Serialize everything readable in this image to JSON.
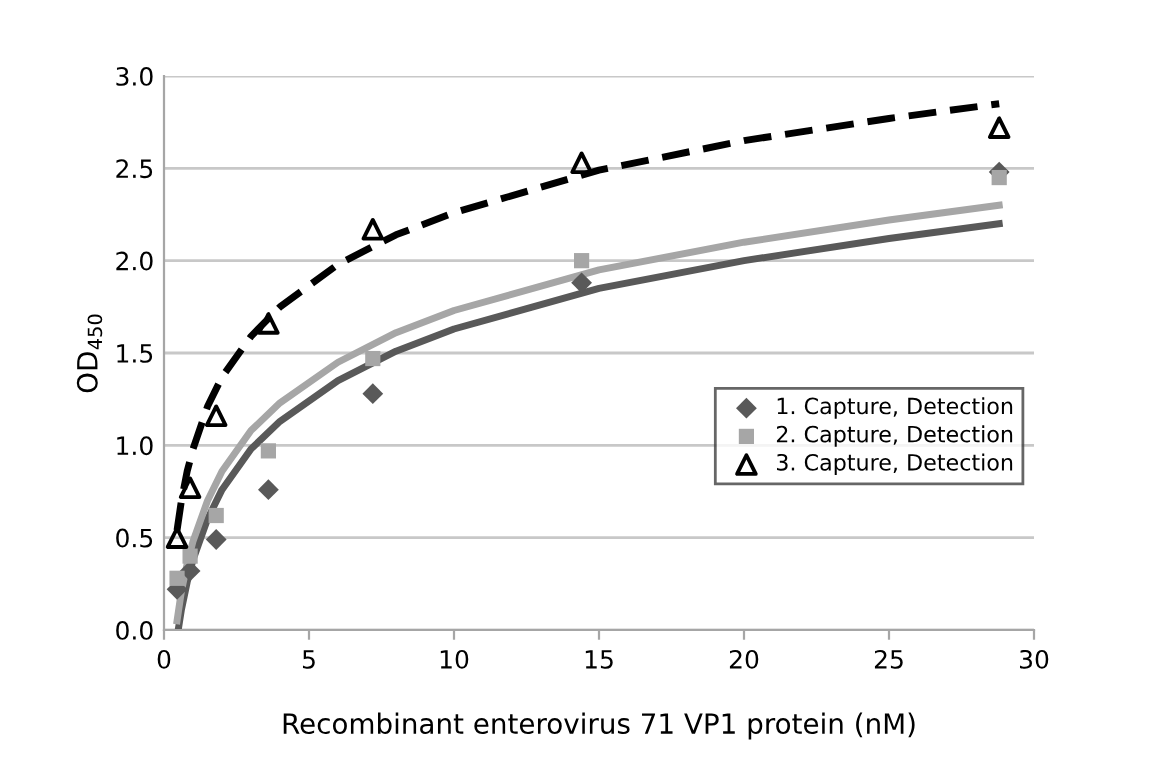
{
  "chart_data": {
    "type": "scatter",
    "xlabel": "Recombinant enterovirus 71 VP1 protein (nM)",
    "ylabel": "OD$_{450}$",
    "xlim": [
      0,
      30
    ],
    "xticks": [
      0,
      5,
      10,
      15,
      20,
      25,
      30
    ],
    "ylim": [
      0,
      3
    ],
    "yticks": [
      {
        "value": 0,
        "label": "0.0"
      },
      {
        "value": 0.5,
        "label": "0.5"
      },
      {
        "value": 1,
        "label": "1.0"
      },
      {
        "value": 1.5,
        "label": "1.5"
      },
      {
        "value": 2,
        "label": "2.0"
      },
      {
        "value": 2.5,
        "label": "2.5"
      },
      {
        "value": 3,
        "label": "3.0"
      }
    ],
    "grid": "y",
    "legend": "right",
    "x": [
      0.45,
      0.9,
      1.8,
      3.6,
      7.2,
      14.4,
      28.8
    ],
    "series": [
      {
        "name": "1. Capture, Detection",
        "color": "#595959",
        "marker": "diamond",
        "values": [
          0.22,
          0.32,
          0.49,
          0.76,
          1.28,
          1.88,
          2.48
        ]
      },
      {
        "name": "2. Capture, Detection",
        "color": "#a6a6a6",
        "marker": "square",
        "values": [
          0.28,
          0.4,
          0.62,
          0.97,
          1.47,
          2.0,
          2.45
        ]
      },
      {
        "name": "3. Capture, Detection",
        "color": "#000000",
        "marker": "triangle",
        "values": [
          0.5,
          0.77,
          1.16,
          1.66,
          2.17,
          2.53,
          2.72
        ]
      },
      {
        "type": "line",
        "color": "#595959",
        "line_style": "solid",
        "x": [
          0.5,
          0.6,
          0.8,
          1,
          1.5,
          2,
          3,
          4,
          6,
          8,
          10,
          15,
          20,
          25,
          28.8
        ],
        "values": [
          0.01,
          0.11,
          0.26,
          0.38,
          0.6,
          0.76,
          0.98,
          1.13,
          1.35,
          1.51,
          1.63,
          1.85,
          2.0,
          2.12,
          2.2
        ]
      },
      {
        "type": "line",
        "color": "#a6a6a6",
        "line_style": "solid",
        "x": [
          0.45,
          0.6,
          0.8,
          1,
          1.5,
          2,
          3,
          4,
          6,
          8,
          10,
          15,
          20,
          25,
          28.8
        ],
        "values": [
          0.05,
          0.21,
          0.36,
          0.48,
          0.7,
          0.86,
          1.08,
          1.23,
          1.45,
          1.61,
          1.73,
          1.95,
          2.1,
          2.22,
          2.3
        ]
      },
      {
        "type": "line",
        "color": "#000000",
        "line_style": "dashed",
        "x": [
          0.45,
          0.6,
          0.8,
          1,
          1.5,
          2,
          3,
          4,
          6,
          8,
          10,
          15,
          20,
          25,
          28.8
        ],
        "values": [
          0.54,
          0.7,
          0.86,
          0.98,
          1.21,
          1.37,
          1.59,
          1.75,
          1.98,
          2.14,
          2.26,
          2.49,
          2.65,
          2.77,
          2.85
        ]
      }
    ]
  }
}
